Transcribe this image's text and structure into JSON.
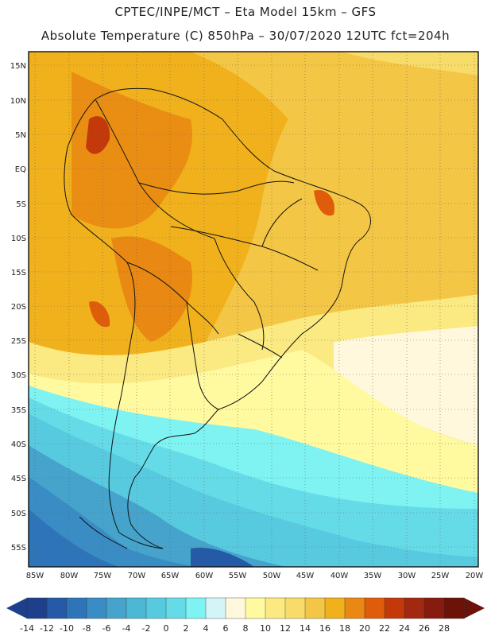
{
  "header": {
    "line1": "CPTEC/INPE/MCT –  Eta Model 15km – GFS",
    "line2": "Absolute Temperature (C) 850hPa – 30/07/2020 12UTC fct=204h"
  },
  "lat_labels": [
    "15N",
    "10N",
    "5N",
    "EQ",
    "5S",
    "10S",
    "15S",
    "20S",
    "25S",
    "30S",
    "35S",
    "40S",
    "45S",
    "50S",
    "55S"
  ],
  "lon_labels": [
    "85W",
    "80W",
    "75W",
    "70W",
    "65W",
    "60W",
    "55W",
    "50W",
    "45W",
    "40W",
    "35W",
    "30W",
    "25W",
    "20W"
  ],
  "colorbar": {
    "ticks": [
      "-14",
      "-12",
      "-10",
      "-8",
      "-6",
      "-4",
      "-2",
      "0",
      "2",
      "4",
      "6",
      "8",
      "10",
      "12",
      "14",
      "16",
      "18",
      "20",
      "22",
      "24",
      "26",
      "28"
    ],
    "colors": [
      "#1d3f8c",
      "#245aa6",
      "#2d75b8",
      "#3a8cc4",
      "#45a3cc",
      "#4db8d6",
      "#58cae0",
      "#66dbe8",
      "#7ff2f2",
      "#d4f5f8",
      "#fff8dc",
      "#fffaa0",
      "#fbe981",
      "#f8dc69",
      "#f4c645",
      "#f0b11c",
      "#e98812",
      "#df5c0a",
      "#c4390a",
      "#a32810",
      "#871b10",
      "#6c1208"
    ]
  },
  "icons": {
    "left_arrow": "colorbar-min-arrow-icon",
    "right_arrow": "colorbar-max-arrow-icon"
  }
}
